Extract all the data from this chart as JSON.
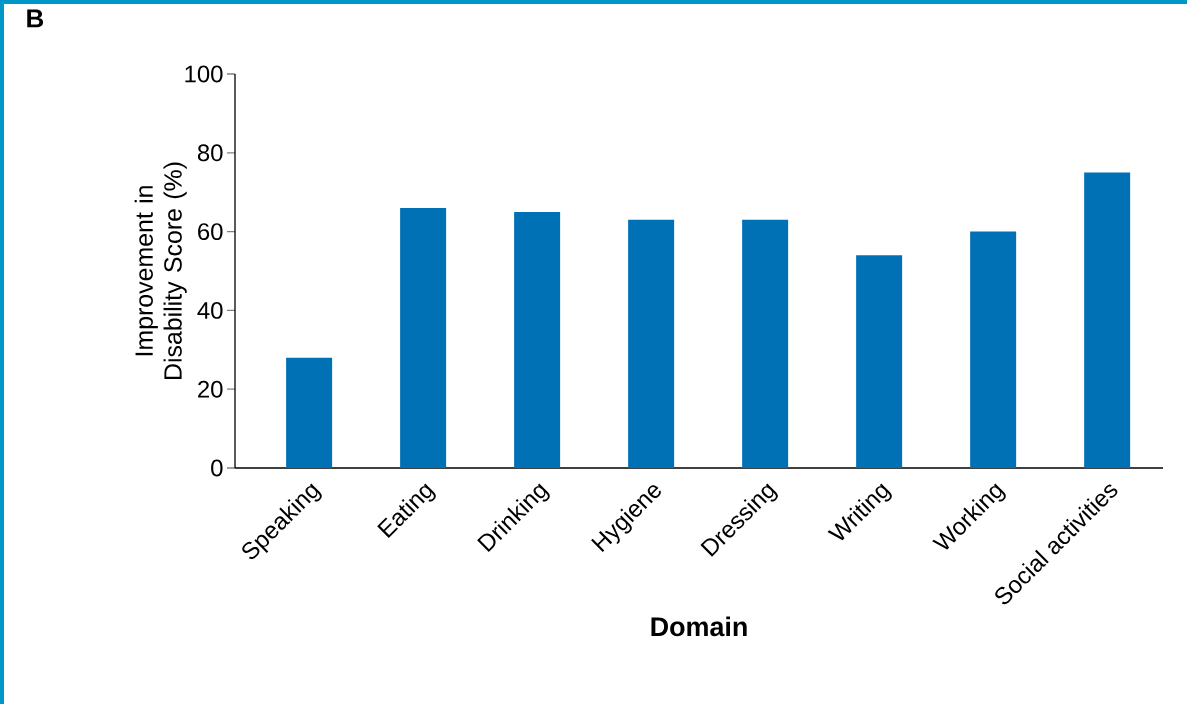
{
  "chart_data": {
    "type": "bar",
    "title": "B",
    "xlabel": "Domain",
    "ylabel": "Improvement in Disability Score (%)",
    "categories": [
      "Speaking",
      "Eating",
      "Drinking",
      "Hygiene",
      "Dressing",
      "Writing",
      "Working",
      "Social activities"
    ],
    "values": [
      28,
      66,
      65,
      63,
      63,
      54,
      60,
      75
    ],
    "color": "#0071b5",
    "ylim": [
      0,
      100
    ],
    "yticks": [
      0,
      20,
      40,
      60,
      80,
      100
    ]
  }
}
